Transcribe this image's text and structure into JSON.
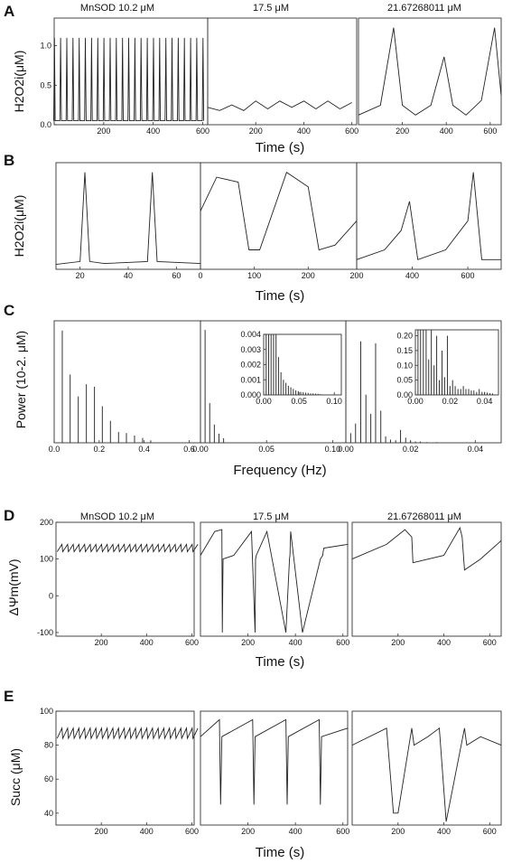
{
  "panel_labels": {
    "A": "A",
    "B": "B",
    "C": "C",
    "D": "D",
    "E": "E"
  },
  "conditions": [
    "MnSOD  10.2 μM",
    "17.5 μM",
    "21.67268011 μM"
  ],
  "axis_text": {
    "time": "Time (s)",
    "frequency": "Frequency (Hz)",
    "h2o2": "H2O2i(μM)",
    "power": "Power (10-2. μM)",
    "psi": "ΔΨm(mV)",
    "succ": "Succ (μM)"
  },
  "chart_data": [
    {
      "panel": "A",
      "type": "line",
      "xlabel": "Time (s)",
      "ylabel": "H2O2i(μM)",
      "series": [
        {
          "condition": "MnSOD  10.2 μM",
          "xlim": [
            0,
            620
          ],
          "ylim": [
            0,
            1.35
          ],
          "xticks": [
            200,
            400,
            600
          ],
          "yticks": [
            0.0,
            0.5,
            1.0
          ],
          "description_points": {
            "x": [
              0,
              25,
              50,
              75,
              100,
              125,
              150,
              175,
              200,
              225,
              250,
              275,
              300,
              325,
              350,
              375,
              400,
              425,
              450,
              475,
              500,
              525,
              550,
              575,
              600
            ],
            "peak": 1.1,
            "baseline": 0.05
          }
        },
        {
          "condition": "17.5 μM",
          "xlim": [
            0,
            620
          ],
          "xticks": [
            200,
            400,
            600
          ],
          "description_points": {
            "x": [
              0,
              50,
              100,
              150,
              200,
              250,
              300,
              350,
              400,
              450,
              500,
              550,
              600
            ],
            "y": [
              0.22,
              0.18,
              0.25,
              0.18,
              0.3,
              0.2,
              0.3,
              0.22,
              0.3,
              0.2,
              0.3,
              0.2,
              0.28
            ]
          }
        },
        {
          "condition": "21.67268011 μM",
          "xlim": [
            0,
            650
          ],
          "xticks": [
            200,
            400,
            600
          ],
          "description_points": {
            "x": [
              0,
              100,
              160,
              200,
              260,
              330,
              390,
              430,
              490,
              560,
              620,
              650
            ],
            "y": [
              0.1,
              0.2,
              1.0,
              0.2,
              0.1,
              0.2,
              0.7,
              0.2,
              0.1,
              0.25,
              1.0,
              0.3
            ]
          }
        }
      ]
    },
    {
      "panel": "B",
      "type": "line",
      "xlabel": "Time (s)",
      "ylabel": "H2O2i(μM)",
      "series": [
        {
          "condition": "MnSOD  10.2 μM",
          "xlim": [
            10,
            70
          ],
          "xticks": [
            20,
            40,
            60
          ],
          "description_points": {
            "x": [
              10,
              20,
              22,
              24,
              30,
              48,
              50,
              52,
              70
            ],
            "y": [
              0.05,
              0.08,
              1.0,
              0.08,
              0.06,
              0.08,
              1.0,
              0.08,
              0.06
            ]
          }
        },
        {
          "condition": "17.5 μM",
          "xlim": [
            0,
            290
          ],
          "xticks": [
            0,
            100,
            200
          ],
          "description_points": {
            "x": [
              0,
              30,
              70,
              90,
              110,
              160,
              200,
              220,
              250,
              290
            ],
            "y": [
              0.6,
              0.95,
              0.9,
              0.2,
              0.2,
              1.0,
              0.85,
              0.2,
              0.25,
              0.5
            ]
          }
        },
        {
          "condition": "21.67268011 μM",
          "xlim": [
            200,
            720
          ],
          "xticks": [
            200,
            400,
            600
          ],
          "description_points": {
            "x": [
              200,
              300,
              360,
              390,
              420,
              520,
              600,
              620,
              650,
              720
            ],
            "y": [
              0.1,
              0.2,
              0.4,
              0.7,
              0.1,
              0.2,
              0.5,
              1.0,
              0.1,
              0.1
            ]
          }
        }
      ]
    },
    {
      "panel": "C",
      "type": "bar",
      "xlabel": "Frequency (Hz)",
      "ylabel": "Power (10-2. μM)",
      "series": [
        {
          "condition": "MnSOD  10.2 μM",
          "xlim": [
            0,
            0.65
          ],
          "ylim": [
            0,
            2.5
          ],
          "xticks": [
            0.0,
            0.2,
            0.4,
            0.6
          ],
          "x": [
            0.036,
            0.071,
            0.107,
            0.143,
            0.179,
            0.214,
            0.25,
            0.286,
            0.321,
            0.357,
            0.393,
            0.429
          ],
          "values": [
            2.3,
            1.4,
            0.95,
            1.2,
            1.15,
            0.75,
            0.45,
            0.22,
            0.2,
            0.15,
            0.1,
            0.05
          ]
        },
        {
          "condition": "17.5 μM",
          "xlim": [
            0,
            0.11
          ],
          "ylim": [
            0,
            0.8
          ],
          "xticks": [
            0.0,
            0.05,
            0.1
          ],
          "x": [
            0.0,
            0.0035,
            0.007,
            0.0105,
            0.014,
            0.0175
          ],
          "values": [
            0.08,
            0.74,
            0.26,
            0.12,
            0.06,
            0.03
          ],
          "inset": {
            "xlim": [
              0,
              0.11
            ],
            "ylim": [
              0,
              0.004
            ],
            "xticks": [
              0.0,
              0.05,
              0.1
            ],
            "yticks": [
              0.0,
              0.001,
              0.002,
              0.003,
              0.004
            ],
            "x": [
              0.0035,
              0.007,
              0.0105,
              0.014,
              0.0175,
              0.021,
              0.0245,
              0.028,
              0.0315,
              0.035,
              0.0385,
              0.042,
              0.0455,
              0.049,
              0.0525,
              0.056,
              0.0595,
              0.063,
              0.0665,
              0.07,
              0.0735,
              0.077,
              0.0805
            ],
            "values": [
              0.004,
              0.004,
              0.004,
              0.004,
              0.004,
              0.0025,
              0.0015,
              0.001,
              0.0008,
              0.0006,
              0.0005,
              0.0004,
              0.0003,
              0.00025,
              0.0002,
              0.00018,
              0.00015,
              0.00013,
              0.0001,
              0.0001,
              8e-05,
              7e-05,
              5e-05
            ]
          }
        },
        {
          "condition": "21.67268011 μM",
          "xlim": [
            0,
            0.048
          ],
          "ylim": [
            0,
            1.9
          ],
          "xticks": [
            0.0,
            0.02,
            0.04
          ],
          "x": [
            0.0015,
            0.003,
            0.0046,
            0.0062,
            0.0077,
            0.0092,
            0.0108,
            0.0123,
            0.0138,
            0.0154,
            0.0169,
            0.0185,
            0.02,
            0.0215,
            0.023,
            0.025,
            0.028
          ],
          "values": [
            0.15,
            0.3,
            1.58,
            0.75,
            0.45,
            1.55,
            0.5,
            0.1,
            0.05,
            0.04,
            0.2,
            0.08,
            0.03,
            0.02,
            0.02,
            0.01,
            0.01
          ],
          "inset": {
            "xlim": [
              0,
              0.048
            ],
            "ylim": [
              0,
              0.22
            ],
            "xticks": [
              0.0,
              0.02,
              0.04
            ],
            "yticks": [
              0.0,
              0.05,
              0.1,
              0.15,
              0.2
            ],
            "x": [
              0.0015,
              0.003,
              0.0046,
              0.0062,
              0.0077,
              0.0092,
              0.0108,
              0.0123,
              0.0138,
              0.0154,
              0.0169,
              0.0185,
              0.02,
              0.0215,
              0.023,
              0.0246,
              0.0262,
              0.0277,
              0.0292,
              0.0308,
              0.0323,
              0.0338,
              0.0354,
              0.0369,
              0.0385,
              0.04,
              0.0415,
              0.0431,
              0.0446
            ],
            "values": [
              0.22,
              0.22,
              0.22,
              0.22,
              0.12,
              0.22,
              0.1,
              0.2,
              0.05,
              0.15,
              0.06,
              0.2,
              0.03,
              0.05,
              0.03,
              0.02,
              0.02,
              0.03,
              0.02,
              0.02,
              0.015,
              0.015,
              0.01,
              0.02,
              0.01,
              0.01,
              0.008,
              0.006,
              0.005
            ]
          }
        }
      ]
    },
    {
      "panel": "D",
      "type": "line",
      "xlabel": "Time (s)",
      "ylabel": "ΔΨm(mV)",
      "series": [
        {
          "condition": "MnSOD  10.2 μM",
          "xlim": [
            0,
            610
          ],
          "ylim": [
            -110,
            200
          ],
          "xticks": [
            200,
            400,
            600
          ],
          "yticks": [
            -100,
            0,
            100,
            200
          ],
          "description_points": {
            "period": 25,
            "min": 120,
            "max": 140
          }
        },
        {
          "condition": "17.5 μM",
          "xlim": [
            0,
            620
          ],
          "xticks": [
            200,
            400,
            600
          ],
          "description_points": {
            "x": [
              0,
              60,
              90,
              92,
              95,
              140,
              215,
              230,
              232,
              235,
              280,
              360,
              375,
              377,
              380,
              430,
              505,
              515,
              517,
              520,
              620
            ],
            "y": [
              110,
              175,
              180,
              -100,
              100,
              110,
              175,
              -100,
              100,
              110,
              175,
              -100,
              100,
              110,
              175,
              -100,
              100,
              110,
              120,
              130,
              140
            ]
          }
        },
        {
          "condition": "21.67268011 μM",
          "xlim": [
            0,
            650
          ],
          "xticks": [
            200,
            400,
            600
          ],
          "description_points": {
            "x": [
              0,
              150,
              230,
              260,
              265,
              400,
              470,
              480,
              490,
              560,
              650
            ],
            "y": [
              100,
              140,
              180,
              160,
              90,
              110,
              185,
              160,
              70,
              100,
              150
            ]
          }
        }
      ]
    },
    {
      "panel": "E",
      "type": "line",
      "xlabel": "Time (s)",
      "ylabel": "Succ (μM)",
      "series": [
        {
          "condition": "MnSOD  10.2 μM",
          "xlim": [
            0,
            610
          ],
          "ylim": [
            33,
            100
          ],
          "xticks": [
            200,
            400,
            600
          ],
          "yticks": [
            40,
            60,
            80,
            100
          ],
          "description_points": {
            "period": 25,
            "min": 84,
            "max": 90
          }
        },
        {
          "condition": "17.5 μM",
          "xlim": [
            0,
            620
          ],
          "xticks": [
            200,
            400,
            600
          ],
          "description_points": {
            "x": [
              0,
              80,
              85,
              90,
              220,
              225,
              230,
              360,
              365,
              370,
              500,
              505,
              510,
              620
            ],
            "y": [
              85,
              95,
              45,
              85,
              95,
              45,
              85,
              95,
              45,
              85,
              95,
              45,
              85,
              90
            ]
          }
        },
        {
          "condition": "21.67268011 μM",
          "xlim": [
            0,
            650
          ],
          "xticks": [
            200,
            400,
            600
          ],
          "description_points": {
            "x": [
              0,
              150,
              180,
              200,
              260,
              270,
              330,
              380,
              410,
              490,
              500,
              560,
              650
            ],
            "y": [
              80,
              90,
              40,
              40,
              90,
              80,
              85,
              90,
              35,
              90,
              80,
              85,
              80
            ]
          }
        }
      ]
    }
  ]
}
